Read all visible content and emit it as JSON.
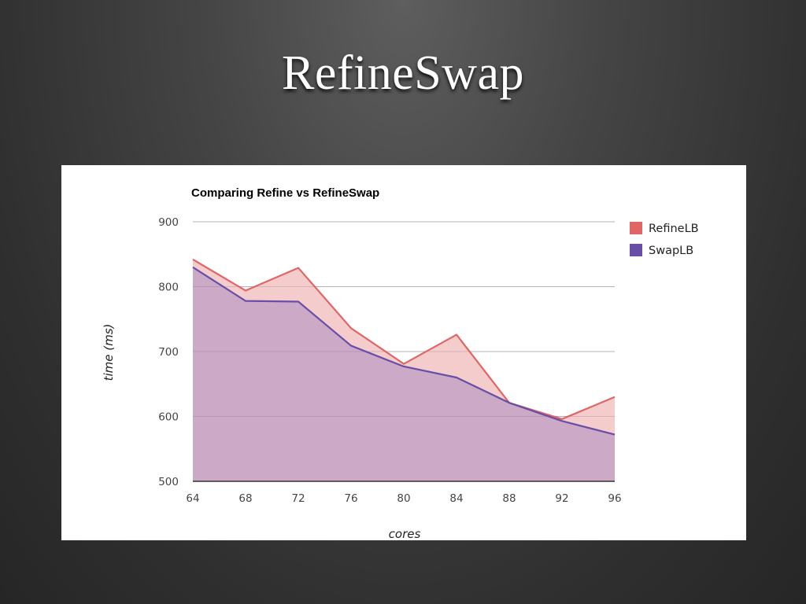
{
  "slide": {
    "title": "RefineSwap"
  },
  "chart_data": {
    "type": "area",
    "title": "Comparing Refine vs RefineSwap",
    "xlabel": "cores",
    "ylabel": "time (ms)",
    "x": [
      64,
      68,
      72,
      76,
      80,
      84,
      88,
      92,
      96
    ],
    "x_ticks": [
      "64",
      "68",
      "72",
      "76",
      "80",
      "84",
      "88",
      "92",
      "96"
    ],
    "y_ticks": [
      "500",
      "600",
      "700",
      "800",
      "900"
    ],
    "ylim": [
      500,
      900
    ],
    "grid": true,
    "legend_position": "right",
    "series": [
      {
        "name": "RefineLB",
        "color": "#e06666",
        "fill": "#f5cccc",
        "values": [
          842,
          794,
          829,
          736,
          681,
          726,
          621,
          596,
          630
        ]
      },
      {
        "name": "SwapLB",
        "color": "#674ea7",
        "fill": "#cda9c8",
        "values": [
          830,
          778,
          777,
          709,
          677,
          660,
          621,
          593,
          572
        ]
      }
    ]
  }
}
